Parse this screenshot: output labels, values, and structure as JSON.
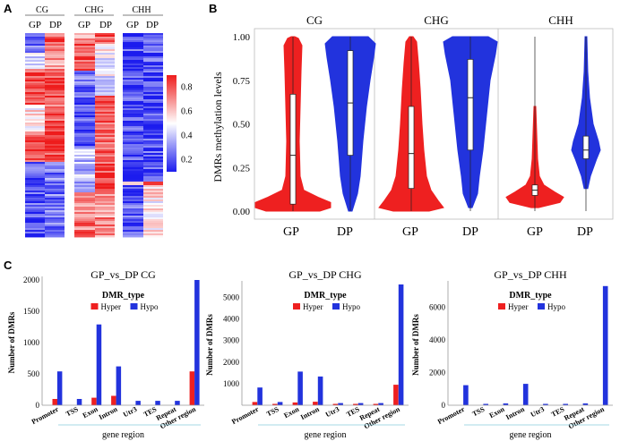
{
  "panels": {
    "a": "A",
    "b": "B",
    "c": "C"
  },
  "colors": {
    "red": "#ee2020",
    "blue": "#2233dd",
    "white": "#ffffff"
  },
  "heatmap": {
    "groups": [
      {
        "title": "CG",
        "cols": [
          "GP",
          "DP"
        ]
      },
      {
        "title": "CHG",
        "cols": [
          "GP",
          "DP"
        ]
      },
      {
        "title": "CHH",
        "cols": [
          "GP",
          "DP"
        ]
      }
    ],
    "legend": {
      "ticks": [
        "0.8",
        "0.6",
        "0.4",
        "0.2"
      ],
      "tick_values": [
        0.8,
        0.6,
        0.4,
        0.2
      ],
      "min": 0.1,
      "max": 0.9
    }
  },
  "violin": {
    "ylabel": "DMRs methylation levels",
    "y_ticks": [
      "1.00",
      "0.75",
      "0.50",
      "0.25",
      "0.00"
    ],
    "y_tick_values": [
      1.0,
      0.75,
      0.5,
      0.25,
      0.0
    ],
    "facets": [
      {
        "title": "CG",
        "labels": [
          "GP",
          "DP"
        ],
        "medians": [
          0.32,
          0.62
        ]
      },
      {
        "title": "CHG",
        "labels": [
          "GP",
          "DP"
        ],
        "medians": [
          0.33,
          0.65
        ]
      },
      {
        "title": "CHH",
        "labels": [
          "GP",
          "DP"
        ],
        "medians": [
          0.12,
          0.35
        ]
      }
    ]
  },
  "chart_data": [
    {
      "type": "bar",
      "title": "GP_vs_DP    CG",
      "categories": [
        "Promoter",
        "TSS",
        "Exon",
        "Intron",
        "Utr3",
        "TES",
        "Repeat",
        "Other region"
      ],
      "series": [
        {
          "name": "Hyper",
          "values": [
            100,
            0,
            120,
            150,
            0,
            0,
            0,
            540
          ]
        },
        {
          "name": "Hypo",
          "values": [
            540,
            100,
            1290,
            620,
            70,
            70,
            70,
            2000
          ]
        }
      ],
      "xlabel": "gene region",
      "ylabel": "Number of DMRs",
      "ylim": [
        0,
        2000
      ],
      "y_ticks": [
        "2000",
        "1500",
        "1000",
        "500",
        "0"
      ],
      "y_tick_values": [
        2000,
        1500,
        1000,
        500,
        0
      ],
      "legend_title": "DMR_type"
    },
    {
      "type": "bar",
      "title": "GP_vs_DP    CHG",
      "categories": [
        "Promoter",
        "TSS",
        "Exon",
        "Intron",
        "Utr3",
        "TES",
        "Repeat",
        "Other region"
      ],
      "series": [
        {
          "name": "Hyper",
          "values": [
            150,
            20,
            130,
            160,
            20,
            20,
            20,
            950
          ]
        },
        {
          "name": "Hypo",
          "values": [
            820,
            150,
            1560,
            1330,
            100,
            100,
            100,
            5600
          ]
        }
      ],
      "xlabel": "gene region",
      "ylabel": "Number of DMRs",
      "ylim": [
        0,
        5600
      ],
      "y_ticks": [
        "5000",
        "4000",
        "3000",
        "2000",
        "1000"
      ],
      "y_tick_values": [
        5000,
        4000,
        3000,
        2000,
        1000
      ],
      "legend_title": "DMR_type"
    },
    {
      "type": "bar",
      "title": "GP_vs_DP    CHH",
      "categories": [
        "Promoter",
        "TSS",
        "Exon",
        "Intron",
        "Utr3",
        "TES",
        "Repeat",
        "Other region"
      ],
      "series": [
        {
          "name": "Hyper",
          "values": [
            0,
            0,
            0,
            0,
            0,
            0,
            0,
            0
          ]
        },
        {
          "name": "Hypo",
          "values": [
            1230,
            80,
            110,
            1310,
            60,
            60,
            110,
            7300
          ]
        }
      ],
      "xlabel": "gene region",
      "ylabel": "Number of DMRs",
      "ylim": [
        0,
        7400
      ],
      "y_ticks": [
        "6000",
        "4000",
        "2000",
        "0"
      ],
      "y_tick_values": [
        6000,
        4000,
        2000,
        0
      ],
      "legend_title": "DMR_type"
    }
  ]
}
